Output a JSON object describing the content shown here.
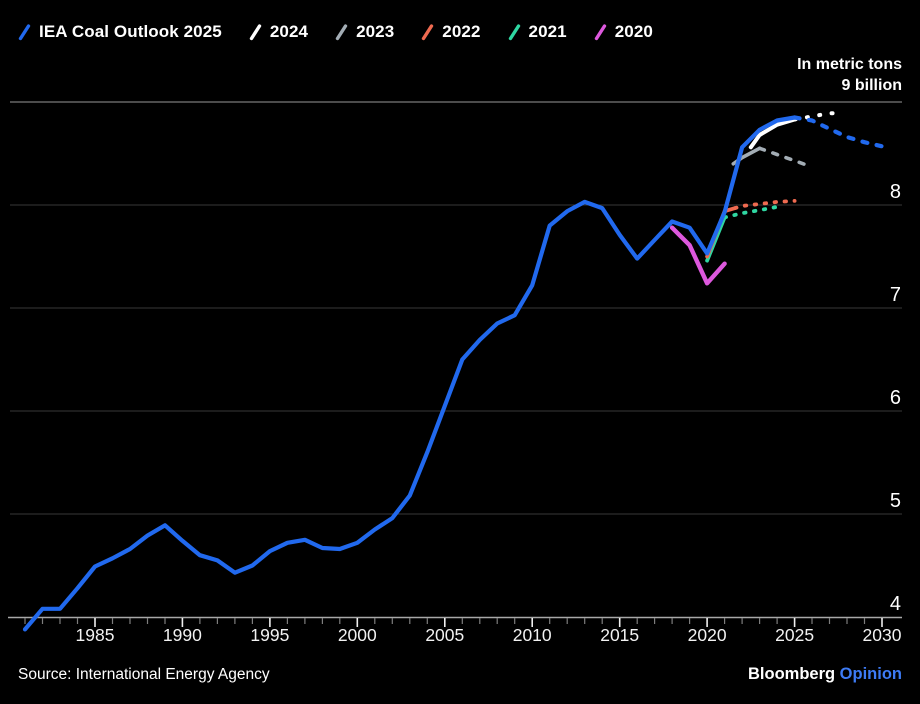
{
  "legend": {
    "items": [
      {
        "label": "IEA Coal Outlook 2025",
        "color": "#2169ee"
      },
      {
        "label": "2024",
        "color": "#ffffff"
      },
      {
        "label": "2023",
        "color": "#a3adb5"
      },
      {
        "label": "2022",
        "color": "#ef6a50"
      },
      {
        "label": "2021",
        "color": "#2fd7a2"
      },
      {
        "label": "2020",
        "color": "#dd58dd"
      }
    ]
  },
  "header": {
    "unit_line1": "In metric tons",
    "unit_line2": "9 billion"
  },
  "footer": {
    "source": "Source: International Energy Agency",
    "brand": "Bloomberg",
    "brand_suffix": "Opinion",
    "opinion_color": "#3d7bf5"
  },
  "chart_data": {
    "type": "line",
    "title": "",
    "xlabel": "",
    "ylabel": "In metric tons (billions)",
    "grid": "horizontal",
    "legend_position": "top-left",
    "colors": {
      "grid": "#383838",
      "grid_top": "#7a7a7a",
      "axis": "#a8a8a8",
      "tick_minor": "#7d7d7d",
      "tick_major": "#efefef",
      "tick_label": "#f2f2f2",
      "y_label": "#ffffff"
    },
    "x_axis": {
      "start": 1981,
      "end": 2030,
      "minor_tick_step": 1,
      "labeled_ticks": [
        1985,
        1990,
        1995,
        2000,
        2005,
        2010,
        2015,
        2020,
        2025,
        2030
      ]
    },
    "y_axis": {
      "min": 4,
      "max": 9,
      "ticks": [
        8,
        7,
        6,
        5,
        4
      ],
      "gridlines": [
        9,
        8,
        7,
        6,
        5
      ],
      "top_label": "9 billion"
    },
    "series": [
      {
        "id": "2021",
        "name": "2021",
        "color": "#2fd7a2",
        "width": 3.8,
        "segments": [
          {
            "style": "solid",
            "points": [
              [
                2020,
                7.46
              ],
              [
                2021,
                7.88
              ]
            ]
          },
          {
            "style": "dashed",
            "dash": "1.5 8.5",
            "points": [
              [
                2021,
                7.88
              ],
              [
                2022,
                7.92
              ],
              [
                2023,
                7.95
              ],
              [
                2024.3,
                7.99
              ]
            ]
          }
        ]
      },
      {
        "id": "2022",
        "name": "2022",
        "color": "#ef6a50",
        "width": 3.8,
        "segments": [
          {
            "style": "solid",
            "points": [
              [
                2020,
                7.5
              ],
              [
                2021,
                7.94
              ],
              [
                2021.6,
                7.97
              ]
            ]
          },
          {
            "style": "dashed",
            "dash": "1.5 8.5",
            "points": [
              [
                2021.6,
                7.97
              ],
              [
                2022,
                7.99
              ],
              [
                2023,
                8.01
              ],
              [
                2024,
                8.03
              ],
              [
                2025,
                8.04
              ]
            ]
          }
        ]
      },
      {
        "id": "2020",
        "name": "2020",
        "color": "#dd58dd",
        "width": 4.4,
        "segments": [
          {
            "style": "solid",
            "points": [
              [
                2018,
                7.78
              ],
              [
                2019,
                7.61
              ],
              [
                2020,
                7.24
              ],
              [
                2021,
                7.43
              ]
            ]
          }
        ]
      },
      {
        "id": "2023",
        "name": "2023",
        "color": "#a3adb5",
        "width": 3.6,
        "segments": [
          {
            "style": "solid",
            "points": [
              [
                2021.5,
                8.4
              ],
              [
                2022,
                8.46
              ],
              [
                2023,
                8.55
              ]
            ]
          },
          {
            "style": "dashed",
            "dash": "5 9",
            "points": [
              [
                2023,
                8.55
              ],
              [
                2024,
                8.49
              ],
              [
                2025,
                8.43
              ],
              [
                2026,
                8.37
              ]
            ]
          }
        ]
      },
      {
        "id": "2024",
        "name": "2024",
        "color": "#ffffff",
        "width": 4,
        "segments": [
          {
            "style": "solid",
            "points": [
              [
                2022.5,
                8.56
              ],
              [
                2023,
                8.68
              ],
              [
                2024,
                8.78
              ],
              [
                2025,
                8.83
              ]
            ]
          },
          {
            "style": "dashed",
            "dash": "1 11.5",
            "points": [
              [
                2025,
                8.83
              ],
              [
                2026,
                8.86
              ],
              [
                2027,
                8.89
              ],
              [
                2027.4,
                8.89
              ]
            ]
          }
        ]
      },
      {
        "id": "iea-2025",
        "name": "IEA Coal Outlook 2025",
        "color": "#2169ee",
        "width": 4.2,
        "segments": [
          {
            "style": "solid",
            "points": [
              [
                1981,
                3.88
              ],
              [
                1982,
                4.08
              ],
              [
                1983,
                4.08
              ],
              [
                1984,
                4.28
              ],
              [
                1985,
                4.49
              ],
              [
                1986,
                4.57
              ],
              [
                1987,
                4.66
              ],
              [
                1988,
                4.79
              ],
              [
                1989,
                4.89
              ],
              [
                1990,
                4.74
              ],
              [
                1991,
                4.6
              ],
              [
                1992,
                4.55
              ],
              [
                1993,
                4.43
              ],
              [
                1994,
                4.5
              ],
              [
                1995,
                4.64
              ],
              [
                1996,
                4.72
              ],
              [
                1997,
                4.75
              ],
              [
                1998,
                4.67
              ],
              [
                1999,
                4.66
              ],
              [
                2000,
                4.72
              ],
              [
                2001,
                4.85
              ],
              [
                2002,
                4.96
              ],
              [
                2003,
                5.18
              ],
              [
                2004,
                5.6
              ],
              [
                2005,
                6.05
              ],
              [
                2006,
                6.5
              ],
              [
                2007,
                6.69
              ],
              [
                2008,
                6.85
              ],
              [
                2009,
                6.93
              ],
              [
                2010,
                7.22
              ],
              [
                2011,
                7.8
              ],
              [
                2012,
                7.94
              ],
              [
                2013,
                8.03
              ],
              [
                2014,
                7.97
              ],
              [
                2015,
                7.71
              ],
              [
                2016,
                7.48
              ],
              [
                2017,
                7.66
              ],
              [
                2018,
                7.84
              ],
              [
                2019,
                7.78
              ],
              [
                2020,
                7.53
              ],
              [
                2021,
                7.93
              ],
              [
                2022,
                8.56
              ],
              [
                2023,
                8.73
              ],
              [
                2024,
                8.82
              ],
              [
                2025,
                8.85
              ]
            ]
          },
          {
            "style": "dashed",
            "dash": "5 9.5",
            "points": [
              [
                2025,
                8.85
              ],
              [
                2026,
                8.82
              ],
              [
                2027,
                8.74
              ],
              [
                2028,
                8.66
              ],
              [
                2029,
                8.61
              ],
              [
                2030,
                8.57
              ]
            ]
          }
        ]
      }
    ]
  }
}
